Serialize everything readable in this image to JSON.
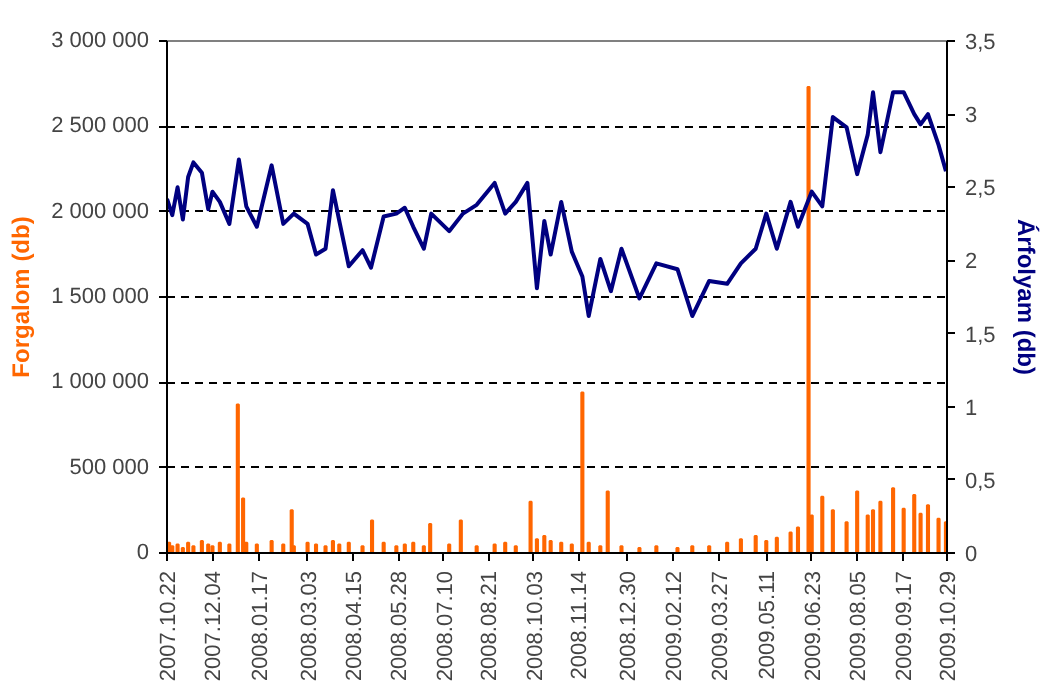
{
  "chart_data": {
    "type": "bar",
    "ylabel": "Forgalom (db)",
    "y2label": "Árfolyam (db)",
    "grid": "y",
    "xlim": [
      "2007-10-22",
      "2009-10-29"
    ],
    "xticks": [
      {
        "value": "2007-10-22",
        "label": "2007.10.22"
      },
      {
        "value": "2007-12-04",
        "label": "2007.12.04"
      },
      {
        "value": "2008-01-17",
        "label": "2008.01.17"
      },
      {
        "value": "2008-03-03",
        "label": "2008.03.03"
      },
      {
        "value": "2008-04-15",
        "label": "2008.04.15"
      },
      {
        "value": "2008-05-28",
        "label": "2008.05.28"
      },
      {
        "value": "2008-07-10",
        "label": "2008.07.10"
      },
      {
        "value": "2008-08-21",
        "label": "2008.08.21"
      },
      {
        "value": "2008-10-03",
        "label": "2008.10.03"
      },
      {
        "value": "2008-11-14",
        "label": "2008.11.14"
      },
      {
        "value": "2008-12-30",
        "label": "2008.12.30"
      },
      {
        "value": "2009-02-12",
        "label": "2009.02.12"
      },
      {
        "value": "2009-03-27",
        "label": "2009.03.27"
      },
      {
        "value": "2009-05-11",
        "label": "2009.05.11"
      },
      {
        "value": "2009-06-23",
        "label": "2009.06.23"
      },
      {
        "value": "2009-08-05",
        "label": "2009.08.05"
      },
      {
        "value": "2009-09-17",
        "label": "2009.09.17"
      },
      {
        "value": "2009-10-29",
        "label": "2009.10.29"
      }
    ],
    "ylim": [
      0,
      3000000
    ],
    "yticks": [
      0,
      {
        "value": 500000,
        "label": "500 000"
      },
      {
        "value": 1000000,
        "label": "1 000 000"
      },
      {
        "value": 1500000,
        "label": "1 500 000"
      },
      {
        "value": 2000000,
        "label": "2 000 000"
      },
      {
        "value": 2500000,
        "label": "2 500 000"
      },
      {
        "value": 3000000,
        "label": "3 000 000"
      }
    ],
    "y2lim": [
      0,
      3.5
    ],
    "y2ticks": [
      0,
      {
        "value": 0.5,
        "label": "0,5"
      },
      1,
      {
        "value": 1.5,
        "label": "1,5"
      },
      2,
      {
        "value": 2.5,
        "label": "2,5"
      },
      3,
      {
        "value": 3.5,
        "label": "3,5"
      }
    ],
    "series": [
      {
        "color": "#ff6600",
        "x": [
          "2007-10-24",
          "2007-10-27",
          "2007-11-01",
          "2007-11-06",
          "2007-11-11",
          "2007-11-16",
          "2007-11-24",
          "2007-11-30",
          "2007-12-04",
          "2007-12-11",
          "2007-12-20",
          "2007-12-28",
          "2008-01-02",
          "2008-01-05",
          "2008-01-15",
          "2008-01-29",
          "2008-02-09",
          "2008-02-17",
          "2008-02-19",
          "2008-03-03",
          "2008-03-11",
          "2008-03-20",
          "2008-03-27",
          "2008-04-02",
          "2008-04-11",
          "2008-04-24",
          "2008-05-03",
          "2008-05-14",
          "2008-05-26",
          "2008-06-03",
          "2008-06-11",
          "2008-06-21",
          "2008-06-27",
          "2008-07-15",
          "2008-07-26",
          "2008-08-10",
          "2008-08-27",
          "2008-09-06",
          "2008-09-16",
          "2008-09-30",
          "2008-10-06",
          "2008-10-13",
          "2008-10-19",
          "2008-10-29",
          "2008-11-08",
          "2008-11-18",
          "2008-11-24",
          "2008-12-05",
          "2008-12-12",
          "2008-12-25",
          "2009-01-11",
          "2009-01-27",
          "2009-02-16",
          "2009-03-02",
          "2009-03-18",
          "2009-04-04",
          "2009-04-17",
          "2009-05-01",
          "2009-05-11",
          "2009-05-21",
          "2009-06-03",
          "2009-06-10",
          "2009-06-20",
          "2009-06-23",
          "2009-07-03",
          "2009-07-13",
          "2009-07-26",
          "2009-08-05",
          "2009-08-15",
          "2009-08-20",
          "2009-08-27",
          "2009-09-08",
          "2009-09-18",
          "2009-09-28",
          "2009-10-04",
          "2009-10-11",
          "2009-10-21",
          "2009-10-28"
        ],
        "values": [
          60000,
          40000,
          50000,
          30000,
          60000,
          40000,
          70000,
          50000,
          40000,
          60000,
          50000,
          870000,
          320000,
          60000,
          50000,
          70000,
          50000,
          250000,
          40000,
          60000,
          50000,
          40000,
          70000,
          50000,
          60000,
          40000,
          190000,
          60000,
          40000,
          50000,
          60000,
          40000,
          170000,
          50000,
          190000,
          40000,
          50000,
          60000,
          40000,
          300000,
          80000,
          100000,
          70000,
          60000,
          50000,
          940000,
          60000,
          40000,
          360000,
          40000,
          30000,
          40000,
          30000,
          40000,
          40000,
          60000,
          80000,
          100000,
          70000,
          90000,
          120000,
          150000,
          2730000,
          220000,
          330000,
          250000,
          180000,
          360000,
          220000,
          250000,
          300000,
          380000,
          260000,
          340000,
          230000,
          280000,
          200000,
          180000
        ]
      },
      {
        "type": "line",
        "axis": "y2",
        "color": "#000080",
        "x": [
          "2007-10-22",
          "2007-10-27",
          "2007-11-01",
          "2007-11-06",
          "2007-11-11",
          "2007-11-16",
          "2007-11-24",
          "2007-11-30",
          "2007-12-04",
          "2007-12-11",
          "2007-12-20",
          "2007-12-29",
          "2008-01-05",
          "2008-01-15",
          "2008-01-29",
          "2008-02-09",
          "2008-02-19",
          "2008-03-03",
          "2008-03-11",
          "2008-03-20",
          "2008-03-27",
          "2008-04-02",
          "2008-04-11",
          "2008-04-24",
          "2008-05-02",
          "2008-05-14",
          "2008-05-26",
          "2008-06-03",
          "2008-06-11",
          "2008-06-21",
          "2008-06-28",
          "2008-07-15",
          "2008-07-28",
          "2008-08-10",
          "2008-08-27",
          "2008-09-06",
          "2008-09-16",
          "2008-09-27",
          "2008-10-06",
          "2008-10-13",
          "2008-10-19",
          "2008-10-29",
          "2008-11-08",
          "2008-11-18",
          "2008-11-24",
          "2008-12-05",
          "2008-12-15",
          "2008-12-25",
          "2009-01-11",
          "2009-01-27",
          "2009-02-16",
          "2009-03-02",
          "2009-03-18",
          "2009-04-04",
          "2009-04-17",
          "2009-05-01",
          "2009-05-11",
          "2009-05-21",
          "2009-06-03",
          "2009-06-10",
          "2009-06-23",
          "2009-07-03",
          "2009-07-13",
          "2009-07-26",
          "2009-08-05",
          "2009-08-15",
          "2009-08-20",
          "2009-08-27",
          "2009-09-08",
          "2009-09-18",
          "2009-09-28",
          "2009-10-04",
          "2009-10-11",
          "2009-10-21",
          "2009-10-28"
        ],
        "values": [
          2.42,
          2.31,
          2.5,
          2.28,
          2.57,
          2.67,
          2.6,
          2.35,
          2.47,
          2.4,
          2.25,
          2.69,
          2.37,
          2.23,
          2.65,
          2.25,
          2.32,
          2.25,
          2.04,
          2.08,
          2.48,
          2.27,
          1.96,
          2.07,
          1.95,
          2.3,
          2.32,
          2.36,
          2.23,
          2.08,
          2.32,
          2.2,
          2.32,
          2.38,
          2.53,
          2.32,
          2.4,
          2.53,
          1.81,
          2.27,
          2.04,
          2.4,
          2.06,
          1.89,
          1.62,
          2.01,
          1.79,
          2.08,
          1.74,
          1.98,
          1.94,
          1.62,
          1.86,
          1.84,
          1.98,
          2.08,
          2.32,
          2.08,
          2.4,
          2.23,
          2.47,
          2.37,
          2.98,
          2.91,
          2.59,
          2.86,
          3.15,
          2.74,
          3.15,
          3.15,
          3.0,
          2.93,
          3.0,
          2.79,
          2.61
        ]
      }
    ]
  }
}
